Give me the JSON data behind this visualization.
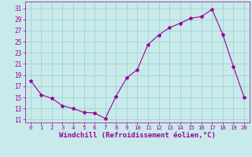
{
  "x": [
    0,
    1,
    2,
    3,
    4,
    5,
    6,
    7,
    8,
    9,
    10,
    11,
    12,
    13,
    14,
    15,
    16,
    17,
    18,
    19,
    20
  ],
  "y": [
    18,
    15.5,
    14.8,
    13.5,
    13,
    12.3,
    12.2,
    11.2,
    15.2,
    18.5,
    20.0,
    24.5,
    26.2,
    27.5,
    28.3,
    29.2,
    29.5,
    30.8,
    26.3,
    20.5,
    15
  ],
  "line_color": "#990099",
  "marker": "*",
  "marker_size": 3,
  "bg_color": "#c8eaea",
  "grid_color": "#aad4d4",
  "xlabel": "Windchill (Refroidissement éolien,°C)",
  "xlabel_fontsize": 6.5,
  "yticks": [
    11,
    13,
    15,
    17,
    19,
    21,
    23,
    25,
    27,
    29,
    31
  ],
  "xticks": [
    0,
    1,
    2,
    3,
    4,
    5,
    6,
    7,
    8,
    9,
    10,
    11,
    12,
    13,
    14,
    15,
    16,
    17,
    18,
    19,
    20
  ],
  "ylim": [
    10.5,
    32.2
  ],
  "xlim": [
    -0.5,
    20.5
  ]
}
